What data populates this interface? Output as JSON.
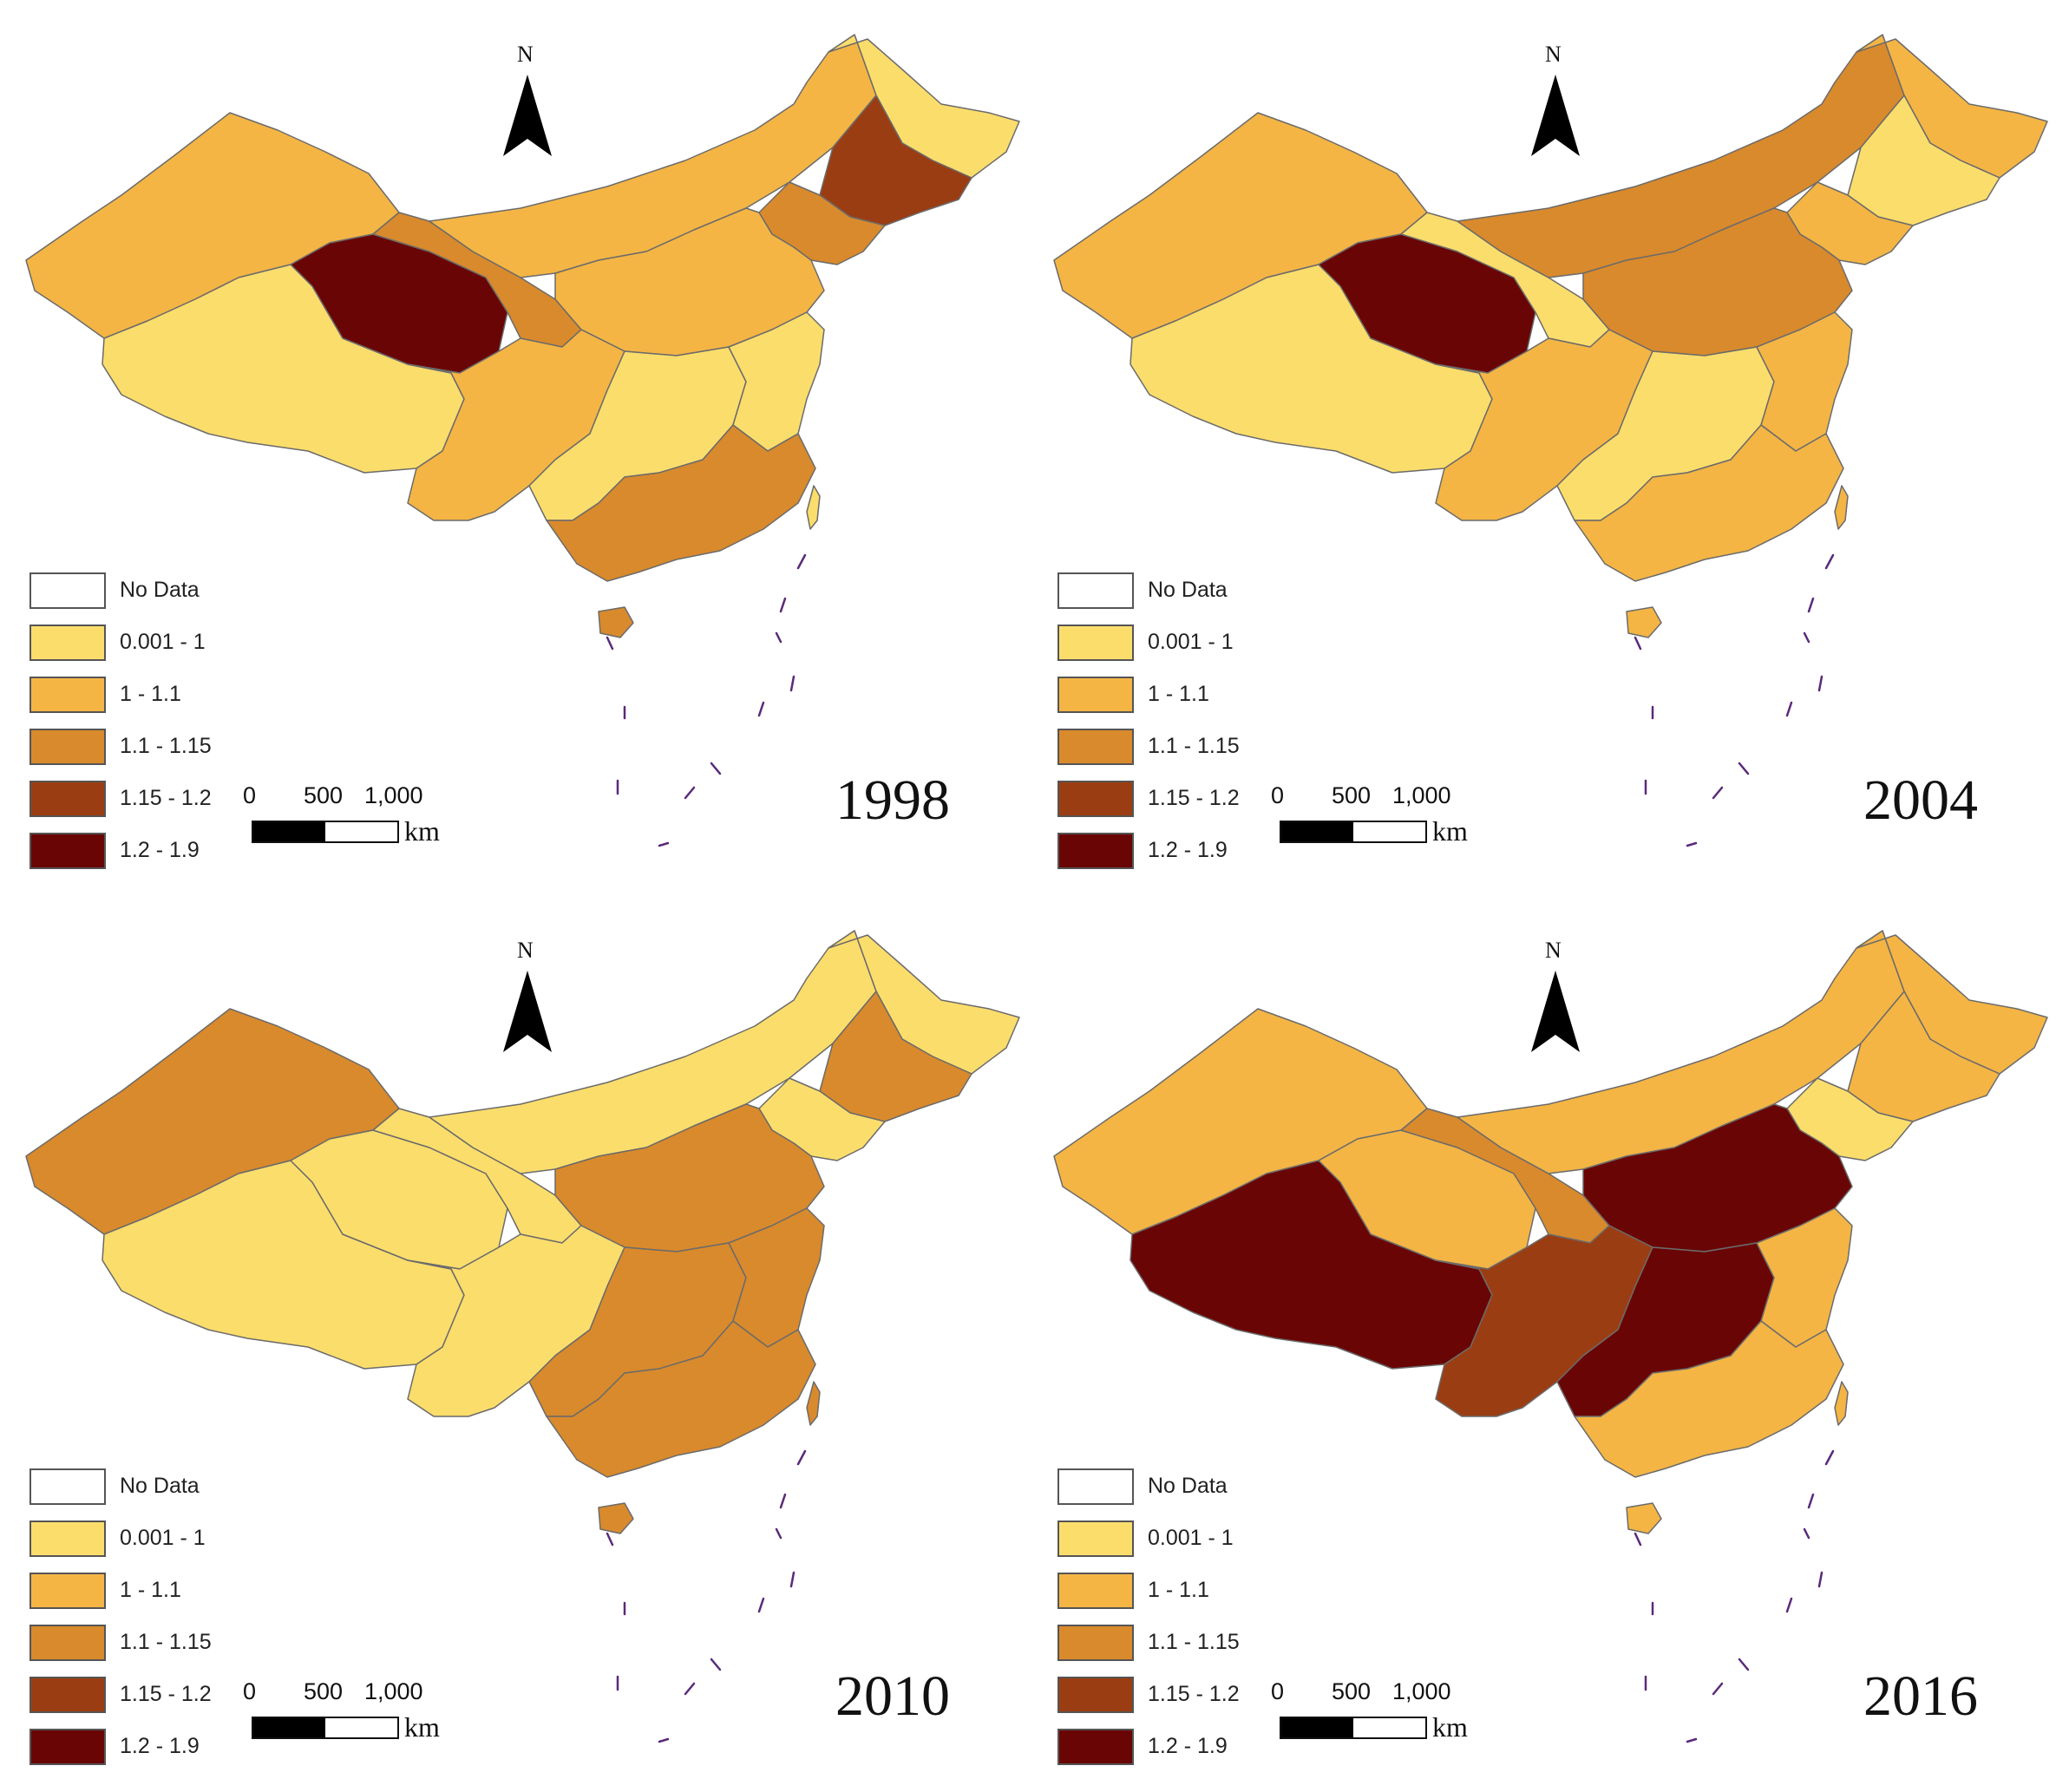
{
  "legend": {
    "title": "",
    "classes": [
      {
        "label": "No Data",
        "color": "#ffffff"
      },
      {
        "label": "0.001 - 1",
        "color": "#fbdd6c"
      },
      {
        "label": "1 - 1.1",
        "color": "#f4b545"
      },
      {
        "label": "1.1 - 1.15",
        "color": "#d98a2c"
      },
      {
        "label": "1.15 - 1.2",
        "color": "#9b3d12"
      },
      {
        "label": "1.2 - 1.9",
        "color": "#6a0505"
      }
    ]
  },
  "north_arrow": {
    "label": "N"
  },
  "scale_bar": {
    "ticks": [
      "0",
      "500",
      "1,000"
    ],
    "unit": "km"
  },
  "maps": [
    {
      "year": "1998",
      "northwest": 2,
      "tibet": 1,
      "qinghai": 5,
      "gansu": 3,
      "inner_mongolia": 2,
      "northeast": 1,
      "jilin": 4,
      "liaoning": 3,
      "north_china": 2,
      "southwest": 2,
      "central": 1,
      "east": 1,
      "southeast": 3
    },
    {
      "year": "2004",
      "northwest": 2,
      "tibet": 1,
      "qinghai": 5,
      "gansu": 1,
      "inner_mongolia": 3,
      "northeast": 2,
      "jilin": 1,
      "liaoning": 2,
      "north_china": 3,
      "southwest": 2,
      "central": 1,
      "east": 2,
      "southeast": 2
    },
    {
      "year": "2010",
      "northwest": 3,
      "tibet": 1,
      "qinghai": 1,
      "gansu": 1,
      "inner_mongolia": 1,
      "northeast": 1,
      "jilin": 3,
      "liaoning": 1,
      "north_china": 3,
      "southwest": 1,
      "central": 3,
      "east": 3,
      "southeast": 3
    },
    {
      "year": "2016",
      "northwest": 2,
      "tibet": 5,
      "qinghai": 2,
      "gansu": 3,
      "inner_mongolia": 2,
      "northeast": 2,
      "jilin": 2,
      "liaoning": 1,
      "north_china": 5,
      "southwest": 4,
      "central": 5,
      "east": 2,
      "southeast": 2
    }
  ]
}
